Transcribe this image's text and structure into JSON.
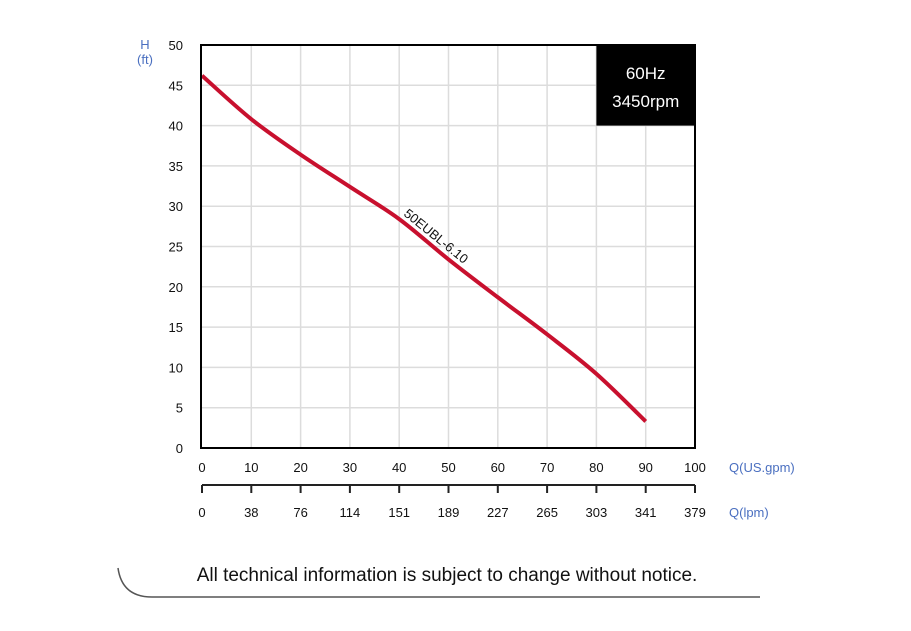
{
  "chart_data": {
    "type": "line",
    "ylabel": "H",
    "yunit": "(ft)",
    "xlabel": "Q(US.gpm)",
    "x2label": "Q(lpm)",
    "xlim": [
      0,
      100
    ],
    "ylim": [
      0,
      50
    ],
    "grid": true,
    "x_ticks": [
      "0",
      "10",
      "20",
      "30",
      "40",
      "50",
      "60",
      "70",
      "80",
      "90",
      "100"
    ],
    "x2_ticks": [
      "0",
      "38",
      "76",
      "114",
      "151",
      "189",
      "227",
      "265",
      "303",
      "341",
      "379"
    ],
    "y_ticks": [
      "0",
      "5",
      "10",
      "15",
      "20",
      "25",
      "30",
      "35",
      "40",
      "45",
      "50"
    ],
    "series": [
      {
        "name": "50EUBL-6.10",
        "color": "#c8102e",
        "x": [
          0,
          10,
          20,
          30,
          40,
          50,
          60,
          70,
          80,
          90
        ],
        "y": [
          46.2,
          40.8,
          36.4,
          32.4,
          28.4,
          23.4,
          18.7,
          14.1,
          9.2,
          3.3
        ]
      }
    ],
    "annotation": {
      "line1": "60Hz",
      "line2": "3450rpm",
      "placement": "top-right"
    }
  },
  "footer": {
    "notice": "All technical information is subject to change without notice."
  }
}
